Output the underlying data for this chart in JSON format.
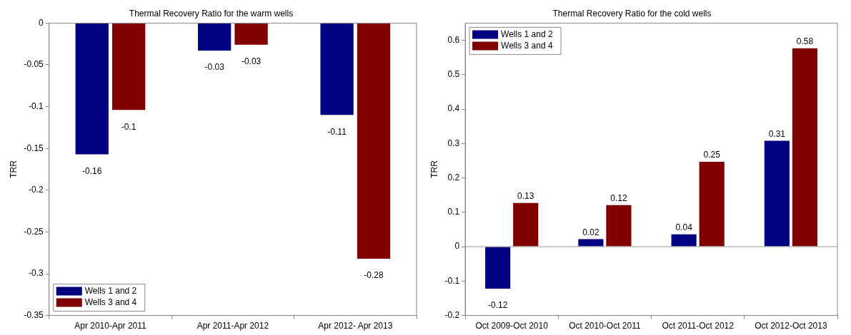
{
  "chart_data": [
    {
      "type": "bar",
      "title": "Thermal Recovery Ratio for the warm wells",
      "ylabel": "TRR",
      "categories": [
        "Apr 2010-Apr 2011",
        "Apr 2011-Apr 2012",
        "Apr 2012- Apr 2013"
      ],
      "series": [
        {
          "name": "Wells 1 and 2",
          "color": "#000080",
          "values": [
            -0.157,
            -0.033,
            -0.11
          ],
          "value_labels": [
            "-0.16",
            "-0.03",
            "-0.11"
          ]
        },
        {
          "name": "Wells 3 and 4",
          "color": "#800000",
          "values": [
            -0.104,
            -0.026,
            -0.282
          ],
          "value_labels": [
            "-0.1",
            "-0.03",
            "-0.28"
          ]
        }
      ],
      "ylim": [
        -0.35,
        0
      ],
      "yticks": [
        {
          "value": -0.35,
          "label": "-0.35"
        },
        {
          "value": -0.3,
          "label": "-0.3"
        },
        {
          "value": -0.25,
          "label": "-0.25"
        },
        {
          "value": -0.2,
          "label": "-0.2"
        },
        {
          "value": -0.15,
          "label": "-0.15"
        },
        {
          "value": -0.1,
          "label": "-0.1"
        },
        {
          "value": -0.05,
          "label": "-0.05"
        },
        0
      ],
      "grid": false,
      "legend": "bottom left"
    },
    {
      "type": "bar",
      "title": "Thermal Recovery Ratio for the cold wells",
      "ylabel": "TRR",
      "categories": [
        "Oct 2009-Oct 2010",
        "Oct 2010-Oct 2011",
        "Oct 2011-Oct 2012",
        "Oct 2012-Oct 2013"
      ],
      "series": [
        {
          "name": "Wells 1 and 2",
          "color": "#000080",
          "values": [
            -0.122,
            0.022,
            0.036,
            0.308
          ],
          "value_labels": [
            "-0.12",
            "0.02",
            "0.04",
            "0.31"
          ]
        },
        {
          "name": "Wells 3 and 4",
          "color": "#800000",
          "values": [
            0.127,
            0.121,
            0.247,
            0.577
          ],
          "value_labels": [
            "0.13",
            "0.12",
            "0.25",
            "0.58"
          ]
        }
      ],
      "ylim": [
        -0.2,
        0.65
      ],
      "yticks": [
        {
          "value": -0.2,
          "label": "-0.2"
        },
        {
          "value": -0.1,
          "label": "-0.1"
        },
        0,
        0.1,
        0.2,
        0.3,
        0.4,
        0.5,
        0.6
      ],
      "ref_lines": [
        {
          "axis": "y",
          "value": 0,
          "color": "#999999"
        }
      ],
      "grid": false,
      "legend": "top left"
    }
  ]
}
